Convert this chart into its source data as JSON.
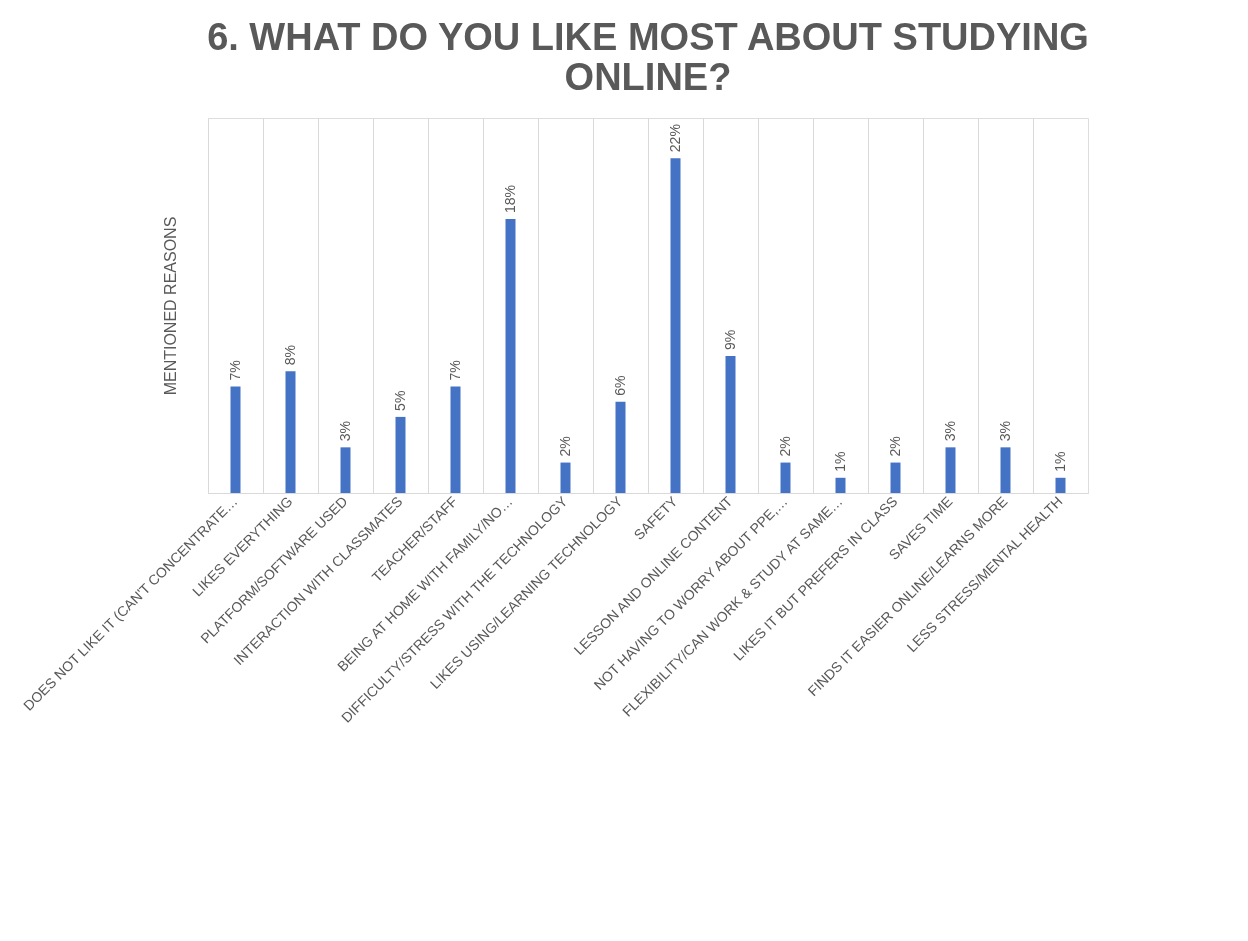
{
  "chart_data": {
    "type": "bar",
    "title": "6. WHAT DO YOU LIKE MOST ABOUT STUDYING ONLINE?",
    "ylabel": "MENTIONED REASONS",
    "categories": [
      "DOES NOT LIKE IT (CAN'T CONCENTRATE…",
      "LIKES EVERYTHING",
      "PLATFORM/SOFTWARE USED",
      "INTERACTION WITH CLASSMATES",
      "TEACHER/STAFF",
      "BEING AT HOME WITH FAMILY/NO…",
      "DIFFICULTY/STRESS WITH THE TECHNOLOGY",
      "LIKES USING/LEARNING TECHNOLOGY",
      "SAFETY",
      "LESSON AND ONLINE CONTENT",
      "NOT HAVING TO WORRY ABOUT PPE,…",
      "FLEXIBILITY/CAN WORK & STUDY AT SAME…",
      "LIKES IT BUT PREFERS IN CLASS",
      "SAVES TIME",
      "FINDS IT EASIER ONLINE/LEARNS MORE",
      "LESS STRESS/MENTAL HEALTH"
    ],
    "values": [
      7,
      8,
      3,
      5,
      7,
      18,
      2,
      6,
      22,
      9,
      2,
      1,
      2,
      3,
      3,
      1
    ],
    "value_labels": [
      "7%",
      "8%",
      "3%",
      "5%",
      "7%",
      "18%",
      "2%",
      "6%",
      "22%",
      "9%",
      "2%",
      "1%",
      "2%",
      "3%",
      "3%",
      "1%"
    ],
    "color": "#4472c4",
    "grid": "x"
  }
}
